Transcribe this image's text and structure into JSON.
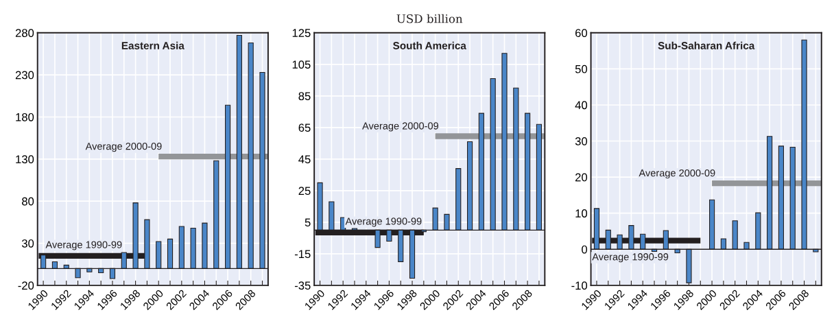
{
  "chart_data": [
    {
      "type": "bar",
      "title": "Eastern Asia",
      "x": [
        1990,
        1991,
        1992,
        1993,
        1994,
        1995,
        1996,
        1997,
        1998,
        1999,
        2000,
        2001,
        2002,
        2003,
        2004,
        2005,
        2006,
        2007,
        2008,
        2009
      ],
      "series": [
        {
          "type": "bar",
          "color": "#4a86c8",
          "values": [
            16,
            8,
            4,
            -11,
            -4,
            -5,
            -12,
            19,
            78,
            58,
            32,
            35,
            50,
            48,
            54,
            128,
            194,
            277,
            268,
            233
          ]
        },
        {
          "type": "line",
          "name": "Average 1990-99",
          "color": "#231f20",
          "x": [
            1989.6,
            1999
          ],
          "values": [
            15,
            15
          ]
        },
        {
          "type": "line",
          "name": "Average 2000-09",
          "color": "#939598",
          "x": [
            2000,
            2009.5
          ],
          "values": [
            133,
            133
          ]
        }
      ],
      "xlim": [
        1989.5,
        2009.5
      ],
      "xticks": [
        1990,
        {
          "value": 1991,
          "label": null
        },
        1992,
        {
          "value": 1993,
          "label": null
        },
        1994,
        {
          "value": 1995,
          "label": null
        },
        1996,
        {
          "value": 1997,
          "label": null
        },
        1998,
        {
          "value": 1999,
          "label": null
        },
        2000,
        {
          "value": 2001,
          "label": null
        },
        2002,
        {
          "value": 2003,
          "label": null
        },
        2004,
        {
          "value": 2005,
          "label": null
        },
        2006,
        {
          "value": 2007,
          "label": null
        },
        2008,
        {
          "value": 2009,
          "label": null
        }
      ],
      "ylim": [
        -20,
        280
      ],
      "yticks": [
        -20,
        30,
        80,
        130,
        180,
        230,
        280
      ],
      "grid": true,
      "legend": false
    },
    {
      "type": "bar",
      "title": "South America",
      "subtitle": "USD billion",
      "x": [
        1990,
        1991,
        1992,
        1993,
        1994,
        1995,
        1996,
        1997,
        1998,
        1999,
        2000,
        2001,
        2002,
        2003,
        2004,
        2005,
        2006,
        2007,
        2008,
        2009
      ],
      "series": [
        {
          "type": "bar",
          "color": "#4a86c8",
          "values": [
            30,
            18,
            8,
            1,
            null,
            -11,
            -7,
            -20,
            -30.5,
            -1,
            14,
            10,
            39,
            56,
            74,
            96,
            112,
            90,
            74,
            67
          ]
        },
        {
          "type": "line",
          "name": "Average 1990-99",
          "color": "#231f20",
          "x": [
            1989.6,
            1999
          ],
          "values": [
            -1.5,
            -1.5
          ]
        },
        {
          "type": "line",
          "name": "Average 2000-09",
          "color": "#939598",
          "x": [
            2000,
            2009.5
          ],
          "values": [
            59.5,
            59.5
          ]
        }
      ],
      "xlim": [
        1989.5,
        2009.5
      ],
      "xticks": [
        1990,
        {
          "value": 1991,
          "label": null
        },
        1992,
        {
          "value": 1993,
          "label": null
        },
        1994,
        {
          "value": 1995,
          "label": null
        },
        1996,
        {
          "value": 1997,
          "label": null
        },
        1998,
        {
          "value": 1999,
          "label": null
        },
        2000,
        {
          "value": 2001,
          "label": null
        },
        2002,
        {
          "value": 2003,
          "label": null
        },
        2004,
        {
          "value": 2005,
          "label": null
        },
        2006,
        {
          "value": 2007,
          "label": null
        },
        2008,
        {
          "value": 2009,
          "label": null
        }
      ],
      "ylim": [
        -35,
        125
      ],
      "yticks": [
        -35,
        -15,
        5,
        25,
        45,
        65,
        85,
        105,
        125
      ],
      "grid": true,
      "legend": false
    },
    {
      "type": "bar",
      "title": "Sub-Saharan Africa",
      "x": [
        1990,
        1991,
        1992,
        1993,
        1994,
        1995,
        1996,
        1997,
        1998,
        1999,
        2000,
        2001,
        2002,
        2003,
        2004,
        2005,
        2006,
        2007,
        2008,
        2009
      ],
      "series": [
        {
          "type": "bar",
          "color": "#4a86c8",
          "values": [
            11.3,
            5.3,
            4,
            6.6,
            4.2,
            -0.6,
            5.2,
            -1,
            -9.3,
            null,
            13.7,
            2.9,
            7.9,
            1.9,
            10.1,
            31.3,
            28.6,
            28.3,
            58,
            -0.7
          ]
        },
        {
          "type": "line",
          "name": "Average 1990-99",
          "color": "#231f20",
          "x": [
            1989.6,
            1999
          ],
          "values": [
            2.4,
            2.4
          ]
        },
        {
          "type": "line",
          "name": "Average 2000-09",
          "color": "#939598",
          "x": [
            2000,
            2009.5
          ],
          "values": [
            18.3,
            18.3
          ]
        }
      ],
      "xlim": [
        1989.5,
        2009.5
      ],
      "xticks": [
        1990,
        {
          "value": 1991,
          "label": null
        },
        1992,
        {
          "value": 1993,
          "label": null
        },
        1994,
        {
          "value": 1995,
          "label": null
        },
        1996,
        {
          "value": 1997,
          "label": null
        },
        1998,
        {
          "value": 1999,
          "label": null
        },
        2000,
        {
          "value": 2001,
          "label": null
        },
        2002,
        {
          "value": 2003,
          "label": null
        },
        2004,
        {
          "value": 2005,
          "label": null
        },
        2006,
        {
          "value": 2007,
          "label": null
        },
        2008,
        {
          "value": 2009,
          "label": null
        }
      ],
      "ylim": [
        -10,
        60
      ],
      "yticks": [
        -10,
        0,
        10,
        20,
        30,
        40,
        50,
        60
      ],
      "grid": true,
      "legend": false
    }
  ]
}
